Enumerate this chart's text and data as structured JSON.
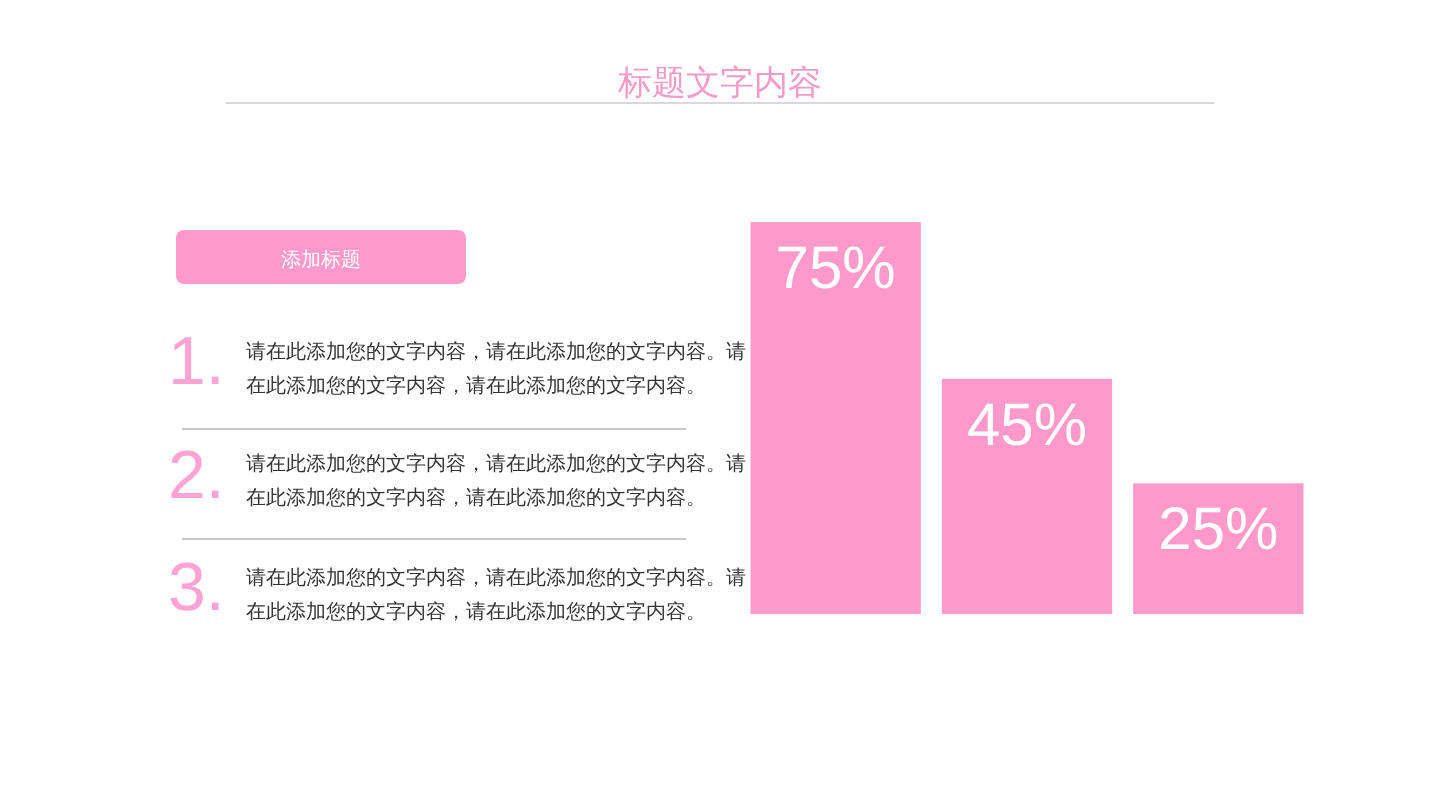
{
  "chart_data": [
    {
      "type": "other",
      "title": "添加标题",
      "annotations": [
        "1.",
        "请在此添加您的文字内容，请在此添加您的文字内容。请在此添加您的文字内容，请在此添加您的文字内容。",
        "2.",
        "请在此添加您的文字内容，请在此添加您的文字内容。请在此添加您的文字内容，请在此添加您的文字内容。",
        "3.",
        "请在此添加您的文字内容，请在此添加您的文字内容。请在此添加您的文字内容，请在此添加您的文字内容。"
      ]
    },
    {
      "type": "bar",
      "title": "标题文字内容",
      "categories": [
        null,
        null,
        null
      ],
      "values": [
        75,
        45,
        25
      ],
      "value_labels": [
        "75%",
        "45%",
        "25%"
      ],
      "color": "#ff99cc"
    }
  ]
}
